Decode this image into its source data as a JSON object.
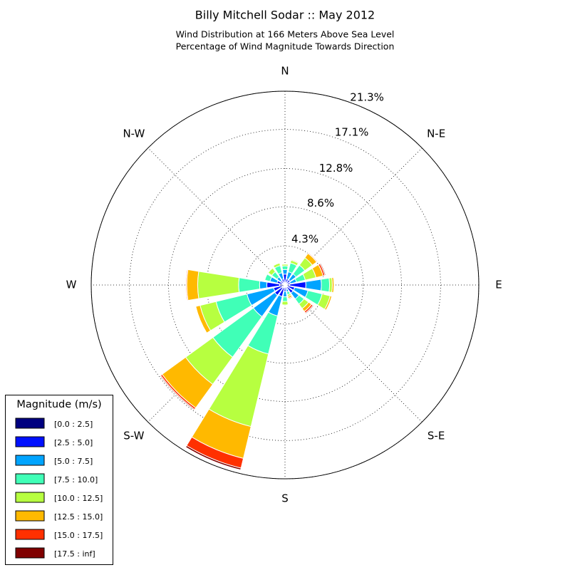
{
  "chart_data": {
    "type": "windrose",
    "title": "Billy Mitchell Sodar :: May 2012",
    "subtitle": [
      "Wind Distribution at 166 Meters Above Sea Level",
      "Percentage of Wind Magnitude Towards Direction"
    ],
    "categories": [
      "N",
      null,
      "N-E",
      null,
      "E",
      null,
      "S-E",
      null,
      "S",
      null,
      "S-W",
      null,
      "W",
      null,
      "N-W",
      null
    ],
    "rlim": [
      0,
      21.3
    ],
    "rticks": [
      {
        "value": 4.3,
        "label": "4.3%"
      },
      {
        "value": 8.6,
        "label": "8.6%"
      },
      {
        "value": 12.8,
        "label": "12.8%"
      },
      {
        "value": 17.1,
        "label": "17.1%"
      },
      {
        "value": 21.3,
        "label": "21.3%"
      }
    ],
    "grid": true,
    "legend_title": "Magnitude (m/s)",
    "legend_position": "lower left",
    "series": [
      {
        "name": "[0.0 : 2.5]",
        "color": "#000080",
        "values": [
          0.3,
          0.2,
          0.2,
          0.2,
          0.5,
          0.3,
          0.3,
          0.2,
          0.2,
          0.3,
          0.4,
          0.3,
          0.6,
          0.3,
          0.2,
          0.2
        ]
      },
      {
        "name": "[2.5 : 5.0]",
        "color": "#0010ff",
        "values": [
          0.9,
          0.5,
          0.5,
          0.4,
          1.8,
          0.8,
          0.8,
          0.3,
          0.5,
          1.0,
          1.0,
          1.0,
          1.4,
          0.6,
          0.4,
          0.5
        ]
      },
      {
        "name": "[5.0 : 7.5]",
        "color": "#00a4ff",
        "values": [
          0.5,
          0.8,
          0.8,
          0.7,
          1.7,
          1.5,
          0.8,
          0.3,
          0.6,
          2.2,
          2.9,
          3.0,
          0.8,
          0.8,
          0.5,
          0.7
        ]
      },
      {
        "name": "[7.5 : 10.0]",
        "color": "#40ffb7",
        "values": [
          0.4,
          1.0,
          1.2,
          1.0,
          0.9,
          1.6,
          0.7,
          0.3,
          0.5,
          4.3,
          5.5,
          3.5,
          2.3,
          0.6,
          0.7,
          0.8
        ]
      },
      {
        "name": "[10.0 : 12.5]",
        "color": "#b7ff40",
        "values": [
          0.2,
          0.3,
          1.0,
          1.2,
          0.3,
          0.9,
          0.6,
          0.2,
          0.4,
          8.2,
          3.7,
          1.8,
          4.5,
          0,
          0.5,
          0.3
        ]
      },
      {
        "name": "[12.5 : 15.0]",
        "color": "#ffb900",
        "values": [
          0,
          0.1,
          0.6,
          0.8,
          0.2,
          0.2,
          0.4,
          0.2,
          0,
          3.6,
          3.2,
          0.5,
          1.2,
          0,
          0,
          0
        ]
      },
      {
        "name": "[15.0 : 17.5]",
        "color": "#ff3000",
        "values": [
          0,
          0,
          0.1,
          0.2,
          0,
          0,
          0.2,
          0.1,
          0,
          1.1,
          0.2,
          0,
          0.1,
          0,
          0,
          0
        ]
      },
      {
        "name": "[17.5 : inf]",
        "color": "#800000",
        "values": [
          0,
          0,
          0,
          0.1,
          0,
          0,
          0.1,
          0,
          0,
          0.2,
          0.1,
          0,
          0,
          0,
          0,
          0
        ]
      }
    ]
  }
}
